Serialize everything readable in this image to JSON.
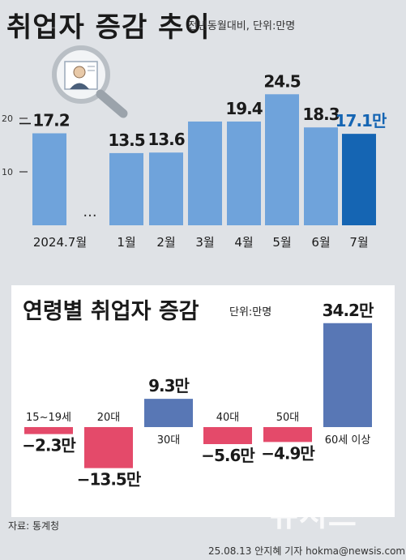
{
  "header": {
    "title": "취업자 증감 추이",
    "subtitle": "전년동월대비, 단위:만명"
  },
  "chart_data": [
    {
      "type": "bar",
      "categories": [
        "2024.7월",
        "1월",
        "2월",
        "3월",
        "4월",
        "5월",
        "6월",
        "7월"
      ],
      "values": [
        17.2,
        13.5,
        13.6,
        19.4,
        19.4,
        24.5,
        18.3,
        17.1
      ],
      "data_labels": [
        "17.2",
        "13.5",
        "13.6",
        "",
        "19.4",
        "24.5",
        "18.3",
        "17.1만"
      ],
      "yticks": [
        10,
        20
      ],
      "ytick_labels": [
        "10",
        "20"
      ],
      "ylim": [
        0,
        27
      ],
      "break_label": "···",
      "highlight_color": "#1565b3",
      "bar_color": "#6fa3db"
    },
    {
      "type": "bar",
      "title": "연령별 취업자 증감",
      "unit": "단위:만명",
      "categories": [
        "15~19세",
        "20대",
        "30대",
        "40대",
        "50대",
        "60세 이상"
      ],
      "values": [
        -2.3,
        -13.5,
        9.3,
        -5.6,
        -4.9,
        34.2
      ],
      "data_labels": [
        "−2.3만",
        "−13.5만",
        "9.3만",
        "−5.6만",
        "−4.9만",
        "34.2만"
      ],
      "positive_color": "#5877b5",
      "negative_color": "#e44a6a"
    }
  ],
  "footer": {
    "source": "자료: 통계청",
    "credit": "25.08.13 안지혜 기자 hokma@newsis.com",
    "watermark": "뉴시스"
  }
}
